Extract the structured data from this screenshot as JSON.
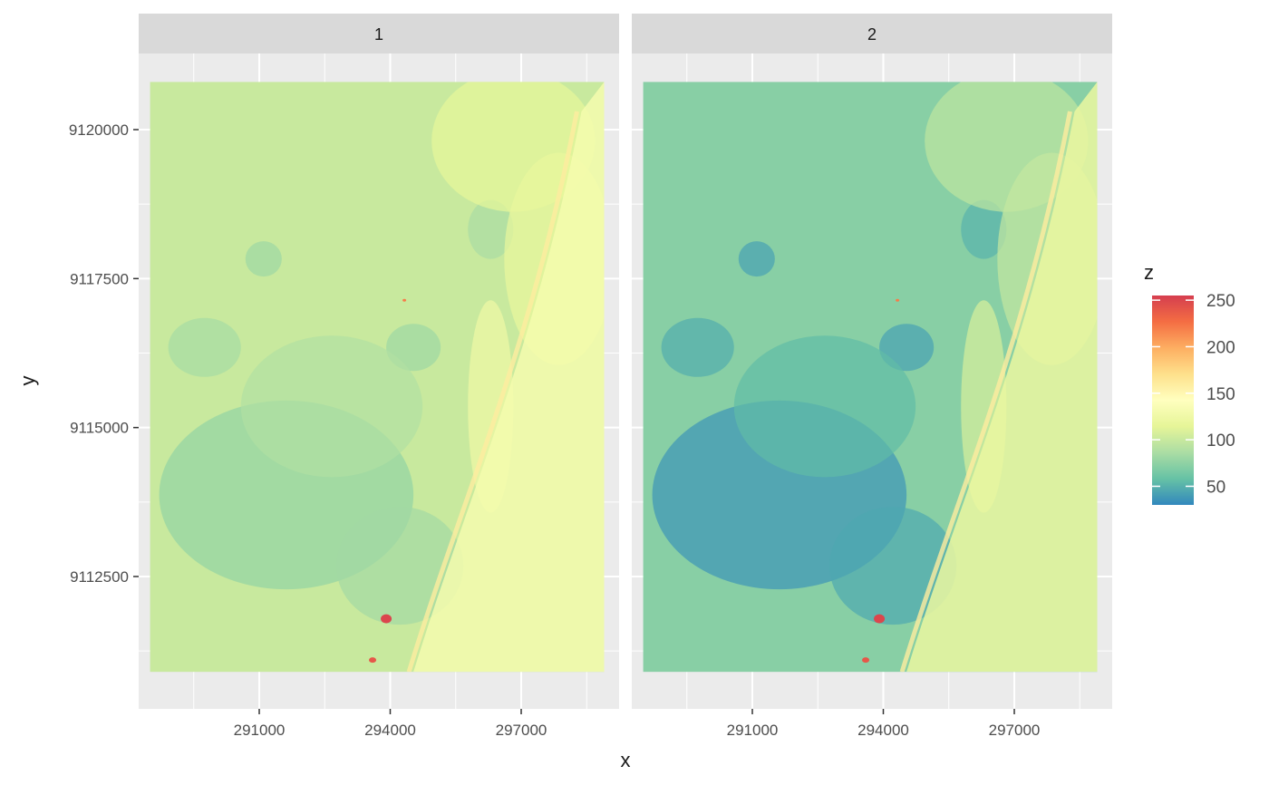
{
  "chart_data": {
    "type": "heatmap",
    "description_free": true,
    "facets": [
      {
        "label": "1"
      },
      {
        "label": "2"
      }
    ],
    "xlabel": "x",
    "ylabel": "y",
    "xlim": [
      288500,
      298900
    ],
    "ylim": [
      9110900,
      9120800
    ],
    "x_ticks": [
      291000,
      294000,
      297000
    ],
    "x_tick_labels": [
      "291000",
      "294000",
      "297000"
    ],
    "y_ticks": [
      9112500,
      9115000,
      9117500,
      9120000
    ],
    "y_tick_labels": [
      "9112500",
      "9115000",
      "9117500",
      "9120000"
    ],
    "raster_extent": {
      "xmin": 288500,
      "xmax": 298900,
      "ymin": 9110900,
      "ymax": 9120800
    },
    "fill_scale": {
      "name": "z",
      "palette": "Spectral",
      "limits": [
        30,
        255
      ],
      "breaks": [
        50,
        100,
        150,
        200,
        250
      ],
      "break_labels": [
        "50",
        "100",
        "150",
        "200",
        "250"
      ],
      "colors": [
        "#3288bd",
        "#66c2a5",
        "#abdda4",
        "#e6f598",
        "#ffffbf",
        "#fee08b",
        "#fdae61",
        "#f46d43",
        "#d53e4f"
      ]
    },
    "panel_background": "#ebebeb",
    "strip_background": "#d9d9d9",
    "grid": true,
    "legend_position": "right"
  }
}
